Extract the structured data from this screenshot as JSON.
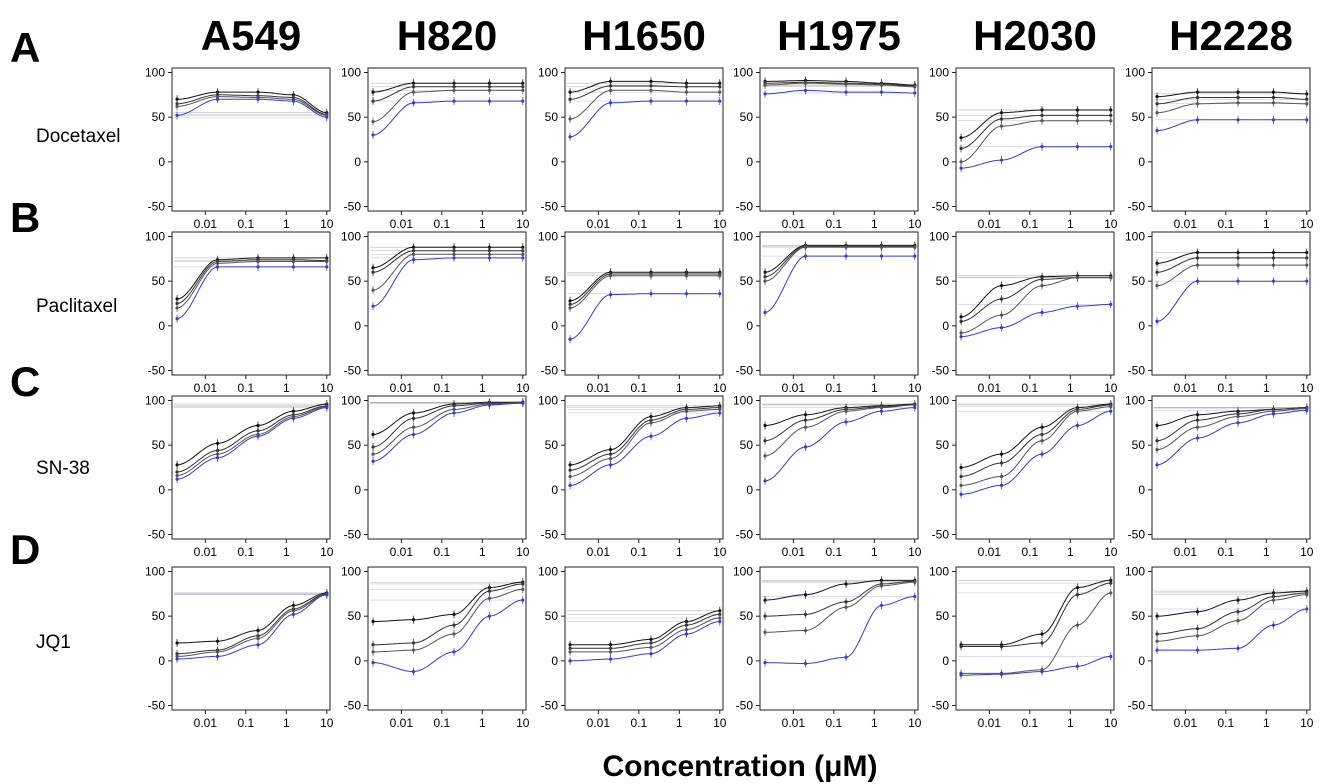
{
  "figure": {
    "x_label": "Concentration (μM)",
    "cell_lines": [
      "A549",
      "H820",
      "H1650",
      "H1975",
      "H2030",
      "H2228"
    ],
    "row_letters": [
      "A",
      "B",
      "C",
      "D"
    ],
    "drugs": [
      "Docetaxel",
      "Paclitaxel",
      "SN-38",
      "JQ1"
    ],
    "y_ticks": [
      "100",
      "50",
      "0",
      "-50"
    ],
    "x_ticks": [
      "0.01",
      "0.1",
      "1",
      "10"
    ]
  },
  "chart_data": {
    "type": "line",
    "x_scale": "log",
    "xlim": [
      0.0015,
      12
    ],
    "ylim": [
      -55,
      105
    ],
    "x": [
      0.002,
      0.02,
      0.2,
      1.5,
      10
    ],
    "series_colors": [
      "#111111",
      "#333333",
      "#555555",
      "#3a3ad0"
    ],
    "grid": false,
    "panels": [
      {
        "row": "A",
        "drug": "Docetaxel",
        "cell_line": "A549",
        "series": [
          {
            "values": [
              70,
              78,
              78,
              75,
              55
            ]
          },
          {
            "values": [
              65,
              75,
              74,
              72,
              53
            ]
          },
          {
            "values": [
              62,
              73,
              72,
              70,
              52
            ]
          },
          {
            "values": [
              52,
              70,
              70,
              68,
              50
            ]
          }
        ]
      },
      {
        "row": "A",
        "drug": "Docetaxel",
        "cell_line": "H820",
        "series": [
          {
            "values": [
              78,
              88,
              88,
              88,
              88
            ]
          },
          {
            "values": [
              68,
              84,
              84,
              84,
              84
            ]
          },
          {
            "values": [
              45,
              78,
              80,
              80,
              80
            ]
          },
          {
            "values": [
              30,
              66,
              68,
              68,
              68
            ]
          }
        ]
      },
      {
        "row": "A",
        "drug": "Docetaxel",
        "cell_line": "H1650",
        "series": [
          {
            "values": [
              78,
              90,
              90,
              88,
              88
            ]
          },
          {
            "values": [
              70,
              85,
              85,
              84,
              84
            ]
          },
          {
            "values": [
              48,
              80,
              80,
              78,
              78
            ]
          },
          {
            "values": [
              28,
              66,
              68,
              68,
              68
            ]
          }
        ]
      },
      {
        "row": "A",
        "drug": "Docetaxel",
        "cell_line": "H1975",
        "series": [
          {
            "values": [
              90,
              91,
              90,
              88,
              86
            ]
          },
          {
            "values": [
              88,
              89,
              88,
              87,
              85
            ]
          },
          {
            "values": [
              86,
              88,
              87,
              86,
              84
            ]
          },
          {
            "values": [
              76,
              80,
              78,
              78,
              77
            ]
          }
        ]
      },
      {
        "row": "A",
        "drug": "Docetaxel",
        "cell_line": "H2030",
        "series": [
          {
            "values": [
              27,
              55,
              58,
              58,
              58
            ]
          },
          {
            "values": [
              15,
              48,
              52,
              52,
              52
            ]
          },
          {
            "values": [
              0,
              40,
              46,
              46,
              46
            ]
          },
          {
            "values": [
              -7,
              2,
              17,
              17,
              17
            ]
          }
        ]
      },
      {
        "row": "A",
        "drug": "Docetaxel",
        "cell_line": "H2228",
        "series": [
          {
            "values": [
              73,
              78,
              78,
              78,
              76
            ]
          },
          {
            "values": [
              65,
              72,
              72,
              72,
              70
            ]
          },
          {
            "values": [
              55,
              65,
              66,
              66,
              65
            ]
          },
          {
            "values": [
              35,
              47,
              47,
              47,
              47
            ]
          }
        ]
      },
      {
        "row": "B",
        "drug": "Paclitaxel",
        "cell_line": "A549",
        "series": [
          {
            "values": [
              30,
              74,
              76,
              76,
              76
            ]
          },
          {
            "values": [
              25,
              72,
              74,
              74,
              73
            ]
          },
          {
            "values": [
              20,
              70,
              72,
              72,
              72
            ]
          },
          {
            "values": [
              8,
              66,
              66,
              66,
              66
            ]
          }
        ]
      },
      {
        "row": "B",
        "drug": "Paclitaxel",
        "cell_line": "H820",
        "series": [
          {
            "values": [
              65,
              88,
              88,
              88,
              88
            ]
          },
          {
            "values": [
              60,
              84,
              84,
              84,
              84
            ]
          },
          {
            "values": [
              40,
              80,
              80,
              80,
              80
            ]
          },
          {
            "values": [
              22,
              74,
              76,
              76,
              76
            ]
          }
        ]
      },
      {
        "row": "B",
        "drug": "Paclitaxel",
        "cell_line": "H1650",
        "series": [
          {
            "values": [
              28,
              60,
              60,
              60,
              60
            ]
          },
          {
            "values": [
              24,
              58,
              58,
              58,
              58
            ]
          },
          {
            "values": [
              20,
              56,
              56,
              56,
              56
            ]
          },
          {
            "values": [
              -15,
              35,
              36,
              36,
              36
            ]
          }
        ]
      },
      {
        "row": "B",
        "drug": "Paclitaxel",
        "cell_line": "H1975",
        "series": [
          {
            "values": [
              60,
              90,
              90,
              90,
              90
            ]
          },
          {
            "values": [
              55,
              89,
              89,
              89,
              89
            ]
          },
          {
            "values": [
              50,
              88,
              88,
              88,
              88
            ]
          },
          {
            "values": [
              15,
              78,
              78,
              78,
              78
            ]
          }
        ]
      },
      {
        "row": "B",
        "drug": "Paclitaxel",
        "cell_line": "H2030",
        "series": [
          {
            "values": [
              10,
              45,
              55,
              56,
              56
            ]
          },
          {
            "values": [
              5,
              30,
              52,
              54,
              54
            ]
          },
          {
            "values": [
              -8,
              12,
              45,
              54,
              54
            ]
          },
          {
            "values": [
              -12,
              -2,
              15,
              22,
              24
            ]
          }
        ]
      },
      {
        "row": "B",
        "drug": "Paclitaxel",
        "cell_line": "H2228",
        "series": [
          {
            "values": [
              70,
              82,
              82,
              82,
              82
            ]
          },
          {
            "values": [
              60,
              76,
              76,
              76,
              76
            ]
          },
          {
            "values": [
              45,
              68,
              68,
              68,
              68
            ]
          },
          {
            "values": [
              5,
              50,
              50,
              50,
              50
            ]
          }
        ]
      },
      {
        "row": "C",
        "drug": "SN-38",
        "cell_line": "A549",
        "series": [
          {
            "values": [
              28,
              52,
              72,
              88,
              96
            ]
          },
          {
            "values": [
              20,
              44,
              66,
              84,
              94
            ]
          },
          {
            "values": [
              16,
              40,
              62,
              82,
              93
            ]
          },
          {
            "values": [
              12,
              36,
              60,
              80,
              92
            ]
          }
        ]
      },
      {
        "row": "C",
        "drug": "SN-38",
        "cell_line": "H820",
        "series": [
          {
            "values": [
              62,
              86,
              96,
              98,
              98
            ]
          },
          {
            "values": [
              48,
              80,
              94,
              97,
              98
            ]
          },
          {
            "values": [
              40,
              70,
              90,
              96,
              97
            ]
          },
          {
            "values": [
              32,
              62,
              86,
              95,
              97
            ]
          }
        ]
      },
      {
        "row": "C",
        "drug": "SN-38",
        "cell_line": "H1650",
        "series": [
          {
            "values": [
              28,
              45,
              82,
              92,
              94
            ]
          },
          {
            "values": [
              22,
              40,
              78,
              90,
              92
            ]
          },
          {
            "values": [
              15,
              35,
              75,
              88,
              90
            ]
          },
          {
            "values": [
              5,
              28,
              60,
              80,
              86
            ]
          }
        ]
      },
      {
        "row": "C",
        "drug": "SN-38",
        "cell_line": "H1975",
        "series": [
          {
            "values": [
              72,
              84,
              92,
              94,
              96
            ]
          },
          {
            "values": [
              55,
              78,
              90,
              93,
              95
            ]
          },
          {
            "values": [
              38,
              70,
              88,
              92,
              95
            ]
          },
          {
            "values": [
              10,
              48,
              76,
              88,
              92
            ]
          }
        ]
      },
      {
        "row": "C",
        "drug": "SN-38",
        "cell_line": "H2030",
        "series": [
          {
            "values": [
              25,
              40,
              70,
              92,
              96
            ]
          },
          {
            "values": [
              15,
              30,
              62,
              90,
              95
            ]
          },
          {
            "values": [
              5,
              15,
              55,
              88,
              93
            ]
          },
          {
            "values": [
              -5,
              5,
              40,
              72,
              88
            ]
          }
        ]
      },
      {
        "row": "C",
        "drug": "SN-38",
        "cell_line": "H2228",
        "series": [
          {
            "values": [
              72,
              84,
              88,
              90,
              92
            ]
          },
          {
            "values": [
              55,
              78,
              85,
              90,
              92
            ]
          },
          {
            "values": [
              45,
              70,
              82,
              88,
              91
            ]
          },
          {
            "values": [
              28,
              58,
              75,
              85,
              89
            ]
          }
        ]
      },
      {
        "row": "D",
        "drug": "JQ1",
        "cell_line": "A549",
        "series": [
          {
            "values": [
              20,
              22,
              34,
              62,
              76
            ]
          },
          {
            "values": [
              8,
              12,
              28,
              58,
              75
            ]
          },
          {
            "values": [
              5,
              10,
              25,
              56,
              74
            ]
          },
          {
            "values": [
              2,
              5,
              18,
              52,
              74
            ]
          }
        ]
      },
      {
        "row": "D",
        "drug": "JQ1",
        "cell_line": "H820",
        "series": [
          {
            "values": [
              44,
              46,
              52,
              82,
              88
            ]
          },
          {
            "values": [
              18,
              20,
              40,
              78,
              86
            ]
          },
          {
            "values": [
              10,
              12,
              30,
              70,
              80
            ]
          },
          {
            "values": [
              -2,
              -12,
              10,
              50,
              68
            ]
          }
        ]
      },
      {
        "row": "D",
        "drug": "JQ1",
        "cell_line": "H1650",
        "series": [
          {
            "values": [
              18,
              18,
              24,
              44,
              56
            ]
          },
          {
            "values": [
              14,
              14,
              20,
              40,
              52
            ]
          },
          {
            "values": [
              10,
              10,
              15,
              35,
              48
            ]
          },
          {
            "values": [
              0,
              2,
              8,
              30,
              44
            ]
          }
        ]
      },
      {
        "row": "D",
        "drug": "JQ1",
        "cell_line": "H1975",
        "series": [
          {
            "values": [
              68,
              74,
              86,
              90,
              90
            ]
          },
          {
            "values": [
              50,
              52,
              66,
              86,
              89
            ]
          },
          {
            "values": [
              32,
              34,
              60,
              84,
              88
            ]
          },
          {
            "values": [
              -2,
              -3,
              4,
              62,
              72
            ]
          }
        ]
      },
      {
        "row": "D",
        "drug": "JQ1",
        "cell_line": "H2030",
        "series": [
          {
            "values": [
              18,
              18,
              30,
              82,
              90
            ]
          },
          {
            "values": [
              16,
              16,
              20,
              74,
              87
            ]
          },
          {
            "values": [
              -14,
              -14,
              -10,
              40,
              76
            ]
          },
          {
            "values": [
              -16,
              -15,
              -12,
              -6,
              5
            ]
          }
        ]
      },
      {
        "row": "D",
        "drug": "JQ1",
        "cell_line": "H2228",
        "series": [
          {
            "values": [
              50,
              55,
              68,
              76,
              78
            ]
          },
          {
            "values": [
              30,
              36,
              55,
              72,
              76
            ]
          },
          {
            "values": [
              22,
              28,
              45,
              68,
              74
            ]
          },
          {
            "values": [
              12,
              12,
              14,
              40,
              58
            ]
          }
        ]
      }
    ]
  }
}
